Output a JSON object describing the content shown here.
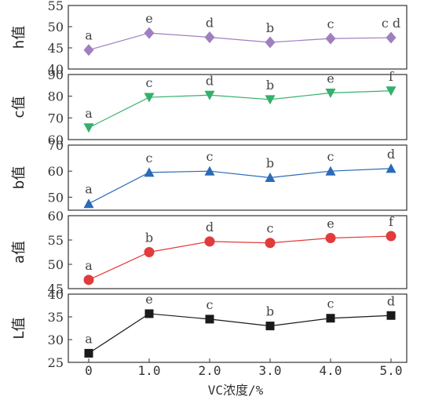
{
  "chart_data": {
    "type": "line",
    "x": [
      "0",
      "1.0",
      "2.0",
      "3.0",
      "4.0",
      "5.0"
    ],
    "xlabel": "VC浓度/%",
    "panels": [
      {
        "ylabel": "h值",
        "ylim": [
          40,
          55
        ],
        "yticks": [
          "55",
          "50",
          "45",
          "40"
        ],
        "values": [
          44.5,
          48.5,
          47.5,
          46.3,
          47.2,
          47.4
        ],
        "letters": [
          "a",
          "e",
          "d",
          "b",
          "c",
          "c d"
        ],
        "color": "#a07fc0",
        "marker": "diamond"
      },
      {
        "ylabel": "c值",
        "ylim": [
          60,
          90
        ],
        "yticks": [
          "90",
          "80",
          "70",
          "60"
        ],
        "values": [
          65.5,
          79.5,
          80.5,
          78.5,
          81.5,
          82.5
        ],
        "letters": [
          "a",
          "c",
          "d",
          "b",
          "e",
          "f"
        ],
        "color": "#33b06b",
        "marker": "triangle-down"
      },
      {
        "ylabel": "b值",
        "ylim": [
          45,
          70
        ],
        "yticks": [
          "70",
          "60",
          "50"
        ],
        "values": [
          47.5,
          59.5,
          60,
          57.5,
          60,
          61
        ],
        "letters": [
          "a",
          "c",
          "c",
          "b",
          "c",
          "d"
        ],
        "color": "#2a6bb7",
        "marker": "triangle-up"
      },
      {
        "ylabel": "a值",
        "ylim": [
          45,
          60
        ],
        "yticks": [
          "60",
          "55",
          "50",
          "45"
        ],
        "values": [
          46.8,
          52.5,
          54.7,
          54.4,
          55.4,
          55.8
        ],
        "letters": [
          "a",
          "b",
          "d",
          "c",
          "e",
          "f"
        ],
        "color": "#e23b3b",
        "marker": "circle"
      },
      {
        "ylabel": "L值",
        "ylim": [
          25,
          40
        ],
        "yticks": [
          "40",
          "35",
          "30",
          "25"
        ],
        "values": [
          27,
          35.7,
          34.5,
          33,
          34.7,
          35.3
        ],
        "letters": [
          "a",
          "e",
          "c",
          "b",
          "c",
          "d"
        ],
        "color": "#1a1a1a",
        "marker": "square"
      }
    ]
  }
}
